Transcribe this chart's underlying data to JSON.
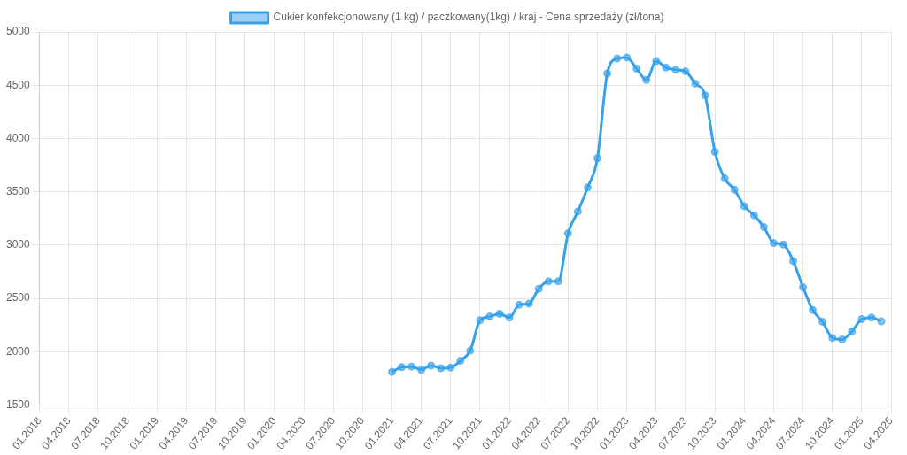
{
  "chart_data": {
    "type": "line",
    "categories": [
      "01.2018",
      null,
      null,
      "04.2018",
      null,
      null,
      "07.2018",
      null,
      null,
      "10.2018",
      null,
      null,
      "01.2019",
      null,
      null,
      "04.2019",
      null,
      null,
      "07.2019",
      null,
      null,
      "10.2019",
      null,
      null,
      "01.2020",
      null,
      null,
      "04.2020",
      null,
      null,
      "07.2020",
      null,
      null,
      "10.2020",
      null,
      null,
      "01.2021",
      null,
      null,
      "04.2021",
      null,
      null,
      "07.2021",
      null,
      null,
      "10.2021",
      null,
      null,
      "01.2022",
      null,
      null,
      "04.2022",
      null,
      null,
      "07.2022",
      null,
      null,
      "10.2022",
      null,
      null,
      "01.2023",
      null,
      null,
      "04.2023",
      null,
      null,
      "07.2023",
      null,
      null,
      "10.2023",
      null,
      null,
      "01.2024",
      null,
      null,
      "04.2024",
      null,
      null,
      "07.2024",
      null,
      null,
      "10.2024",
      null,
      null,
      "01.2025",
      null,
      null,
      "04.2025"
    ],
    "series": [
      {
        "name": "Cukier konfekcjonowany (1 kg) / paczkowany(1kg) / kraj - Cena sprzedaży (zł/tona)",
        "color": "#36a2eb",
        "values": [
          null,
          null,
          null,
          null,
          null,
          null,
          null,
          null,
          null,
          null,
          null,
          null,
          null,
          null,
          null,
          null,
          null,
          null,
          null,
          null,
          null,
          null,
          null,
          null,
          null,
          null,
          null,
          null,
          null,
          null,
          null,
          null,
          null,
          null,
          null,
          null,
          1810,
          1855,
          1860,
          1830,
          1870,
          1845,
          1850,
          1915,
          2010,
          2295,
          2330,
          2355,
          2320,
          2440,
          2450,
          2590,
          2660,
          2660,
          3110,
          3315,
          3540,
          3815,
          4610,
          4750,
          4760,
          4655,
          4550,
          4725,
          4665,
          4645,
          4630,
          4515,
          4405,
          3875,
          3625,
          3520,
          3365,
          3280,
          3170,
          3020,
          3005,
          2850,
          2605,
          2390,
          2280,
          2130,
          2115,
          2190,
          2305,
          2320,
          2285,
          null
        ]
      }
    ],
    "ylim": [
      1500,
      5000
    ],
    "yticks": [
      1500,
      2000,
      2500,
      3000,
      3500,
      4000,
      4500,
      5000
    ],
    "grid": true,
    "legend": "top",
    "marker": "circle",
    "line_style": "solid"
  }
}
